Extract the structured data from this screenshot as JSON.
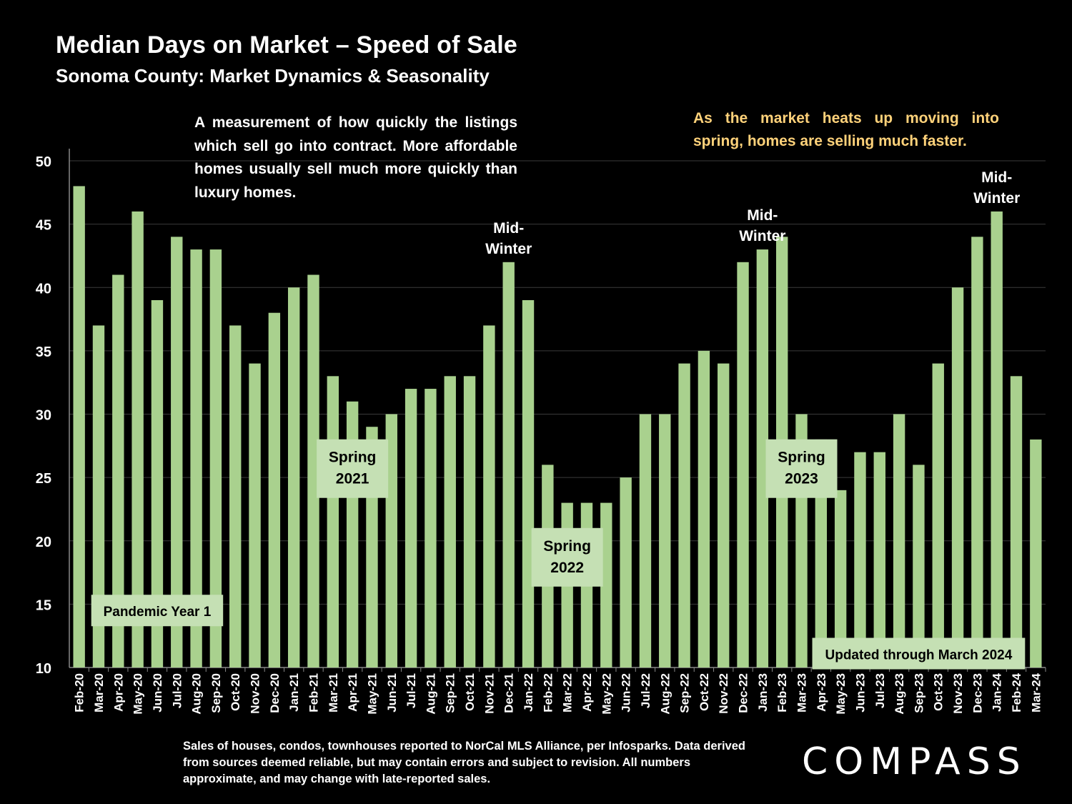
{
  "title": "Median Days on Market – Speed of Sale",
  "subtitle": "Sonoma County: Market Dynamics & Seasonality",
  "description": "A measurement of how quickly the listings which sell go into contract. More affordable homes usually sell much more quickly than luxury homes.",
  "note": "As the market heats up moving into spring, homes are selling much faster.",
  "footnote": "Sales of houses, condos, townhouses reported to NorCal MLS Alliance, per Infosparks. Data derived from sources deemed reliable, but may contain errors and subject to revision. All numbers approximate, and may change with late-reported sales.",
  "brand": "COMPASS",
  "colors": {
    "bar": "#a9d18e",
    "label_box": "#c5e0b4",
    "background": "#000000",
    "note": "#ffd27a"
  },
  "chart_data": {
    "type": "bar",
    "ylim": [
      10,
      50
    ],
    "yticks": [
      10,
      15,
      20,
      25,
      30,
      35,
      40,
      45,
      50
    ],
    "grid": true,
    "categories": [
      "Feb-20",
      "Mar-20",
      "Apr-20",
      "May-20",
      "Jun-20",
      "Jul-20",
      "Aug-20",
      "Sep-20",
      "Oct-20",
      "Nov-20",
      "Dec-20",
      "Jan-21",
      "Feb-21",
      "Mar-21",
      "Apr-21",
      "May-21",
      "Jun-21",
      "Jul-21",
      "Aug-21",
      "Sep-21",
      "Oct-21",
      "Nov-21",
      "Dec-21",
      "Jan-22",
      "Feb-22",
      "Mar-22",
      "Apr-22",
      "May-22",
      "Jun-22",
      "Jul-22",
      "Aug-22",
      "Sep-22",
      "Oct-22",
      "Nov-22",
      "Dec-22",
      "Jan-23",
      "Feb-23",
      "Mar-23",
      "Apr-23",
      "May-23",
      "Jun-23",
      "Jul-23",
      "Aug-23",
      "Sep-23",
      "Oct-23",
      "Nov-23",
      "Dec-23",
      "Jan-24",
      "Feb-24",
      "Mar-24"
    ],
    "values": [
      48,
      37,
      41,
      46,
      39,
      44,
      43,
      43,
      37,
      34,
      38,
      40,
      41,
      33,
      31,
      29,
      30,
      32,
      32,
      33,
      33,
      37,
      42,
      39,
      26,
      23,
      23,
      23,
      25,
      30,
      30,
      34,
      35,
      34,
      42,
      43,
      44,
      30,
      28,
      24,
      27,
      27,
      30,
      26,
      34,
      40,
      44,
      46,
      33,
      28
    ],
    "annotations": [
      {
        "lines": [
          "Mid-",
          "Winter"
        ],
        "category": "Dec-21",
        "style": "text"
      },
      {
        "lines": [
          "Mid-",
          "Winter"
        ],
        "category": "Jan-23",
        "style": "text"
      },
      {
        "lines": [
          "Mid-",
          "Winter"
        ],
        "category": "Jan-24",
        "style": "text"
      },
      {
        "lines": [
          "Spring",
          "2021"
        ],
        "category": "Apr-21",
        "style": "box"
      },
      {
        "lines": [
          "Spring",
          "2022"
        ],
        "category": "Mar-22",
        "style": "box"
      },
      {
        "lines": [
          "Spring",
          "2023"
        ],
        "category": "Mar-23",
        "style": "box"
      },
      {
        "lines": [
          "Pandemic Year 1"
        ],
        "category": "Jun-20",
        "style": "box"
      },
      {
        "lines": [
          "Updated through March 2024"
        ],
        "category": "Sep-23",
        "style": "box"
      }
    ]
  }
}
